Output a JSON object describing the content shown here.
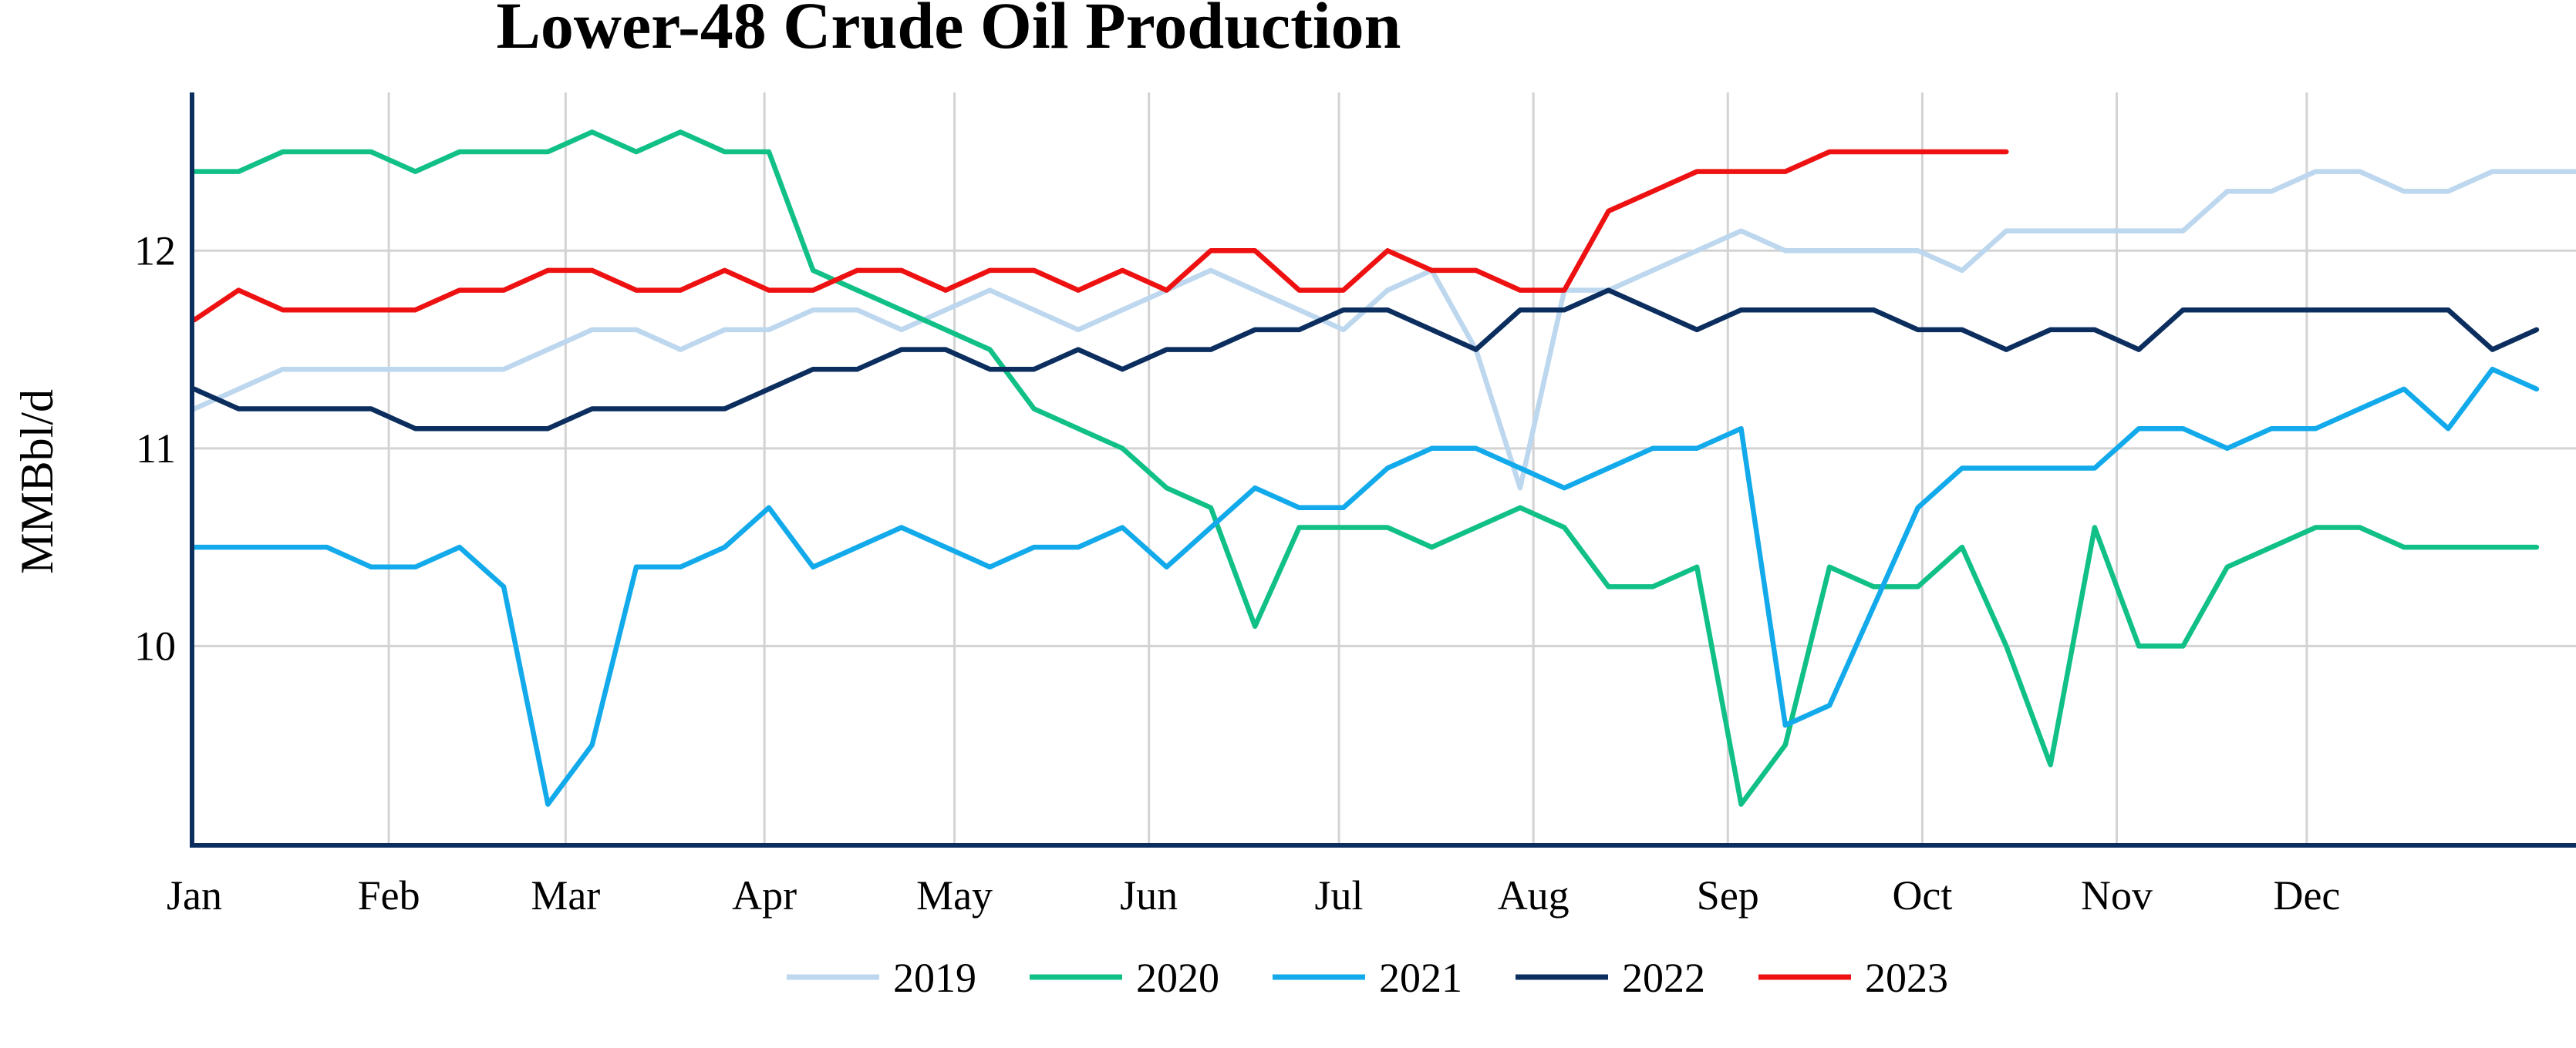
{
  "chart_data": {
    "type": "line",
    "title": "Lower-48 Crude Oil Production",
    "xlabel": "",
    "ylabel": "MMBbl/d",
    "x_tick_labels": [
      "Jan",
      "Feb",
      "Mar",
      "Apr",
      "May",
      "Jun",
      "Jul",
      "Aug",
      "Sep",
      "Oct",
      "Nov",
      "Dec"
    ],
    "y_tick_labels": [
      "10",
      "11",
      "12"
    ],
    "y_ticks": [
      10,
      11,
      12
    ],
    "ylim": [
      9.0,
      12.8
    ],
    "xlim": [
      1,
      53
    ],
    "grid": true,
    "legend_position": "bottom",
    "series": [
      {
        "name": "2019",
        "color": "#bdd7ee",
        "values": [
          11.2,
          11.3,
          11.4,
          11.4,
          11.4,
          11.4,
          11.4,
          11.4,
          11.5,
          11.6,
          11.6,
          11.5,
          11.6,
          11.6,
          11.7,
          11.7,
          11.6,
          11.7,
          11.8,
          11.7,
          11.6,
          11.7,
          11.8,
          11.9,
          11.8,
          11.7,
          11.6,
          11.8,
          11.9,
          11.5,
          10.8,
          11.8,
          11.8,
          11.9,
          12.0,
          12.1,
          12.0,
          12.0,
          12.0,
          12.0,
          11.9,
          12.1,
          12.1,
          12.1,
          12.1,
          12.1,
          12.3,
          12.3,
          12.4,
          12.4,
          12.3,
          12.3,
          12.4,
          12.4,
          12.4
        ]
      },
      {
        "name": "2020",
        "color": "#10c087",
        "values": [
          12.4,
          12.4,
          12.5,
          12.5,
          12.5,
          12.4,
          12.5,
          12.5,
          12.5,
          12.6,
          12.5,
          12.6,
          12.5,
          12.5,
          11.9,
          11.8,
          11.7,
          11.6,
          11.5,
          11.2,
          11.1,
          11.0,
          10.8,
          10.7,
          10.1,
          10.6,
          10.6,
          10.6,
          10.5,
          10.6,
          10.7,
          10.6,
          10.3,
          10.3,
          10.4,
          9.2,
          9.5,
          10.4,
          10.3,
          10.3,
          10.5,
          10.0,
          9.4,
          10.6,
          10.0,
          10.0,
          10.4,
          10.5,
          10.6,
          10.6,
          10.5,
          10.5,
          10.5,
          10.5
        ]
      },
      {
        "name": "2021",
        "color": "#12aaeb",
        "values": [
          10.5,
          10.5,
          10.5,
          10.5,
          10.4,
          10.4,
          10.5,
          10.3,
          9.2,
          9.5,
          10.4,
          10.4,
          10.5,
          10.7,
          10.4,
          10.5,
          10.6,
          10.5,
          10.4,
          10.5,
          10.5,
          10.6,
          10.4,
          10.6,
          10.8,
          10.7,
          10.7,
          10.9,
          11.0,
          11.0,
          10.9,
          10.8,
          10.9,
          11.0,
          11.0,
          11.1,
          9.6,
          9.7,
          10.2,
          10.7,
          10.9,
          10.9,
          10.9,
          10.9,
          11.1,
          11.1,
          11.0,
          11.1,
          11.1,
          11.2,
          11.3,
          11.1,
          11.4,
          11.3
        ]
      },
      {
        "name": "2022",
        "color": "#0b2e5f",
        "values": [
          11.3,
          11.2,
          11.2,
          11.2,
          11.2,
          11.1,
          11.1,
          11.1,
          11.1,
          11.2,
          11.2,
          11.2,
          11.2,
          11.3,
          11.4,
          11.4,
          11.5,
          11.5,
          11.4,
          11.4,
          11.5,
          11.4,
          11.5,
          11.5,
          11.6,
          11.6,
          11.7,
          11.7,
          11.6,
          11.5,
          11.7,
          11.7,
          11.8,
          11.7,
          11.6,
          11.7,
          11.7,
          11.7,
          11.7,
          11.6,
          11.6,
          11.5,
          11.6,
          11.6,
          11.5,
          11.7,
          11.7,
          11.7,
          11.7,
          11.7,
          11.7,
          11.7,
          11.5,
          11.6
        ]
      },
      {
        "name": "2023",
        "color": "#ee1111",
        "values": [
          11.65,
          11.8,
          11.7,
          11.7,
          11.7,
          11.7,
          11.8,
          11.8,
          11.9,
          11.9,
          11.8,
          11.8,
          11.9,
          11.8,
          11.8,
          11.9,
          11.9,
          11.8,
          11.9,
          11.9,
          11.8,
          11.9,
          11.8,
          12.0,
          12.0,
          11.8,
          11.8,
          12.0,
          11.9,
          11.9,
          11.8,
          11.8,
          12.2,
          12.3,
          12.4,
          12.4,
          12.4,
          12.5,
          12.5,
          12.5,
          12.5,
          12.5
        ]
      }
    ]
  }
}
